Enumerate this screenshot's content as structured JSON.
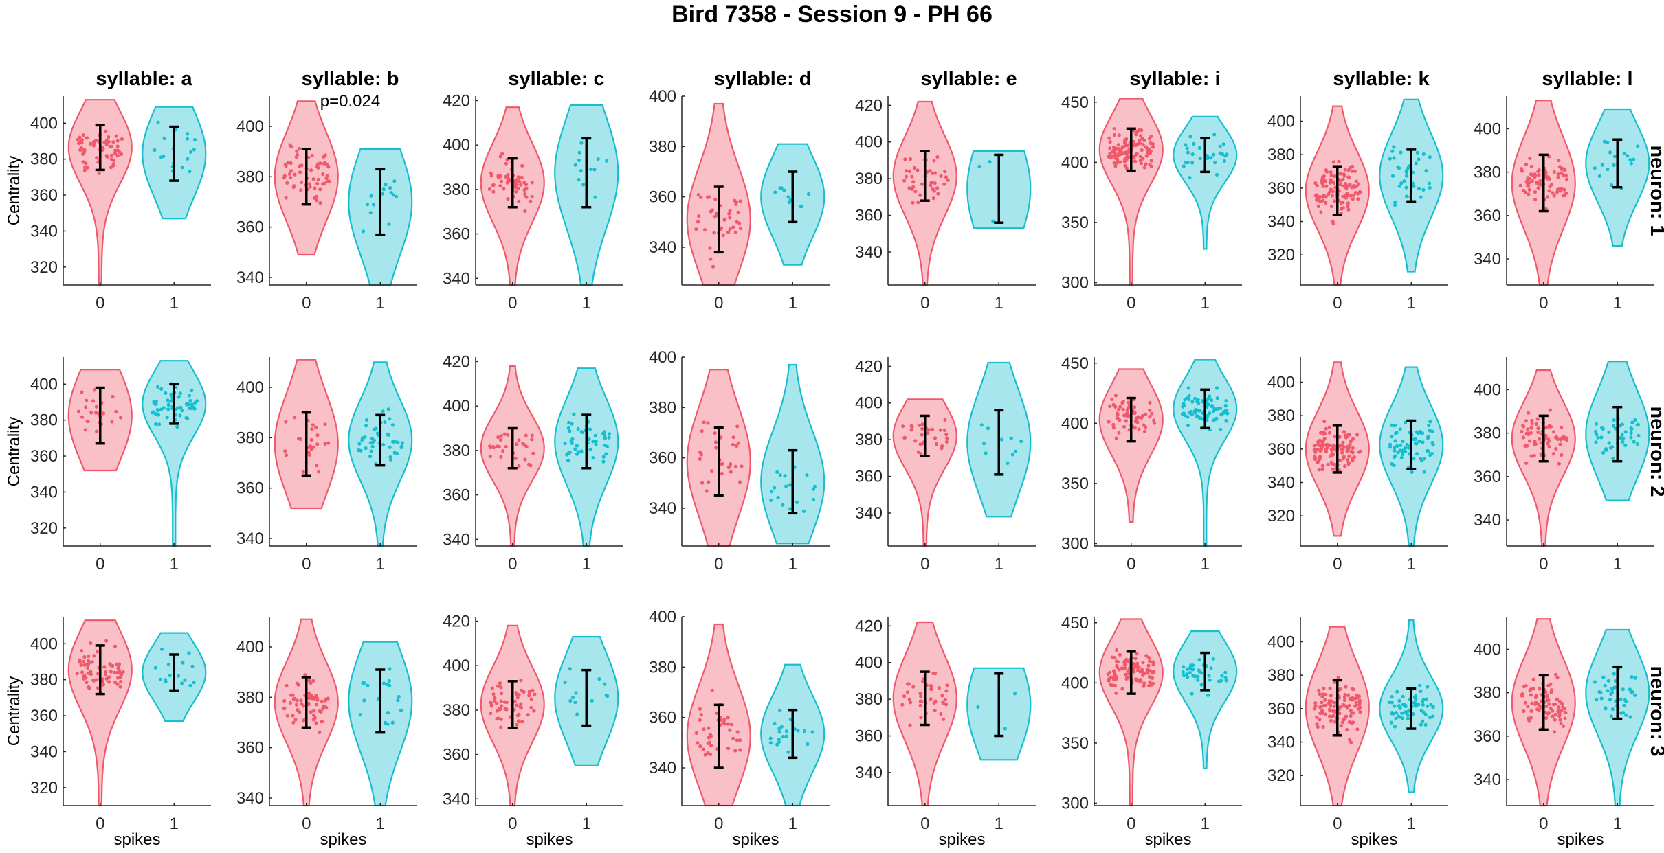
{
  "figure": {
    "title": "Bird 7358 - Session 9 - PH 66",
    "colors": {
      "spike0": "#f0596b",
      "spike1": "#17becf",
      "errorbar": "#000000"
    }
  },
  "chart_data": {
    "type": "violin",
    "title": "Bird 7358 - Session 9 - PH 66",
    "xlabel": "spikes",
    "ylabel": "Centrality",
    "x_categories": [
      "0",
      "1"
    ],
    "columns": [
      "syllable: a",
      "syllable: b",
      "syllable: c",
      "syllable: d",
      "syllable: e",
      "syllable: i",
      "syllable: k",
      "syllable: l"
    ],
    "rows": [
      "neuron: 1",
      "neuron: 2",
      "neuron: 3"
    ],
    "ylims": [
      [
        310,
        415
      ],
      [
        337,
        412
      ],
      [
        337,
        422
      ],
      [
        325,
        400
      ],
      [
        322,
        425
      ],
      [
        298,
        455
      ],
      [
        302,
        415
      ],
      [
        328,
        415
      ]
    ],
    "yticks": [
      [
        320,
        340,
        360,
        380,
        400
      ],
      [
        340,
        360,
        380,
        400
      ],
      [
        340,
        360,
        380,
        400,
        420
      ],
      [
        340,
        360,
        380,
        400
      ],
      [
        340,
        360,
        380,
        400,
        420
      ],
      [
        300,
        350,
        400,
        450
      ],
      [
        320,
        340,
        360,
        380,
        400
      ],
      [
        340,
        360,
        380,
        400
      ]
    ],
    "panels": [
      [
        {
          "groups": [
            {
              "min": 310,
              "max": 413,
              "q1": 374,
              "q3": 399,
              "n": 70
            },
            {
              "min": 347,
              "max": 409,
              "q1": 368,
              "q3": 398,
              "n": 18
            }
          ]
        },
        {
          "annotation": "p=0.024",
          "groups": [
            {
              "min": 349,
              "max": 410,
              "q1": 369,
              "q3": 391,
              "n": 60
            },
            {
              "min": 337,
              "max": 391,
              "q1": 357,
              "q3": 383,
              "n": 14
            }
          ]
        },
        {
          "groups": [
            {
              "min": 337,
              "max": 417,
              "q1": 372,
              "q3": 394,
              "n": 55
            },
            {
              "min": 337,
              "max": 418,
              "q1": 372,
              "q3": 403,
              "n": 12
            }
          ]
        },
        {
          "groups": [
            {
              "min": 325,
              "max": 397,
              "q1": 338,
              "q3": 364,
              "n": 40
            },
            {
              "min": 333,
              "max": 381,
              "q1": 350,
              "q3": 370,
              "n": 10
            }
          ]
        },
        {
          "groups": [
            {
              "min": 322,
              "max": 422,
              "q1": 368,
              "q3": 395,
              "n": 40
            },
            {
              "min": 353,
              "max": 395,
              "q1": 356,
              "q3": 393,
              "n": 3
            }
          ]
        },
        {
          "groups": [
            {
              "min": 298,
              "max": 453,
              "q1": 393,
              "q3": 428,
              "n": 110
            },
            {
              "min": 328,
              "max": 438,
              "q1": 392,
              "q3": 420,
              "n": 28
            }
          ]
        },
        {
          "groups": [
            {
              "min": 302,
              "max": 409,
              "q1": 344,
              "q3": 373,
              "n": 110
            },
            {
              "min": 310,
              "max": 413,
              "q1": 352,
              "q3": 383,
              "n": 38
            }
          ]
        },
        {
          "groups": [
            {
              "min": 328,
              "max": 413,
              "q1": 362,
              "q3": 388,
              "n": 80
            },
            {
              "min": 346,
              "max": 409,
              "q1": 373,
              "q3": 395,
              "n": 18
            }
          ]
        }
      ],
      [
        {
          "groups": [
            {
              "min": 352,
              "max": 408,
              "q1": 367,
              "q3": 398,
              "n": 25
            },
            {
              "min": 310,
              "max": 413,
              "q1": 378,
              "q3": 400,
              "n": 60
            }
          ]
        },
        {
          "groups": [
            {
              "min": 352,
              "max": 411,
              "q1": 365,
              "q3": 390,
              "n": 25
            },
            {
              "min": 337,
              "max": 410,
              "q1": 369,
              "q3": 389,
              "n": 45
            }
          ]
        },
        {
          "groups": [
            {
              "min": 337,
              "max": 418,
              "q1": 372,
              "q3": 390,
              "n": 30
            },
            {
              "min": 337,
              "max": 417,
              "q1": 372,
              "q3": 396,
              "n": 45
            }
          ]
        },
        {
          "groups": [
            {
              "min": 325,
              "max": 395,
              "q1": 345,
              "q3": 372,
              "n": 30
            },
            {
              "min": 326,
              "max": 397,
              "q1": 338,
              "q3": 363,
              "n": 18
            }
          ]
        },
        {
          "groups": [
            {
              "min": 322,
              "max": 402,
              "q1": 371,
              "q3": 393,
              "n": 30
            },
            {
              "min": 338,
              "max": 422,
              "q1": 361,
              "q3": 396,
              "n": 10
            }
          ]
        },
        {
          "groups": [
            {
              "min": 318,
              "max": 445,
              "q1": 385,
              "q3": 421,
              "n": 60
            },
            {
              "min": 298,
              "max": 453,
              "q1": 396,
              "q3": 428,
              "n": 80
            }
          ]
        },
        {
          "groups": [
            {
              "min": 308,
              "max": 412,
              "q1": 346,
              "q3": 374,
              "n": 110
            },
            {
              "min": 302,
              "max": 409,
              "q1": 348,
              "q3": 377,
              "n": 70
            }
          ]
        },
        {
          "groups": [
            {
              "min": 328,
              "max": 409,
              "q1": 367,
              "q3": 388,
              "n": 70
            },
            {
              "min": 349,
              "max": 413,
              "q1": 367,
              "q3": 392,
              "n": 40
            }
          ]
        }
      ],
      [
        {
          "groups": [
            {
              "min": 310,
              "max": 413,
              "q1": 372,
              "q3": 399,
              "n": 70
            },
            {
              "min": 357,
              "max": 406,
              "q1": 374,
              "q3": 394,
              "n": 15
            }
          ]
        },
        {
          "groups": [
            {
              "min": 337,
              "max": 411,
              "q1": 368,
              "q3": 388,
              "n": 60
            },
            {
              "min": 337,
              "max": 402,
              "q1": 366,
              "q3": 391,
              "n": 18
            }
          ]
        },
        {
          "groups": [
            {
              "min": 337,
              "max": 418,
              "q1": 372,
              "q3": 393,
              "n": 55
            },
            {
              "min": 355,
              "max": 413,
              "q1": 373,
              "q3": 398,
              "n": 12
            }
          ]
        },
        {
          "groups": [
            {
              "min": 325,
              "max": 397,
              "q1": 340,
              "q3": 365,
              "n": 40
            },
            {
              "min": 325,
              "max": 381,
              "q1": 344,
              "q3": 363,
              "n": 20
            }
          ]
        },
        {
          "groups": [
            {
              "min": 322,
              "max": 422,
              "q1": 366,
              "q3": 395,
              "n": 40
            },
            {
              "min": 347,
              "max": 397,
              "q1": 360,
              "q3": 394,
              "n": 3
            }
          ]
        },
        {
          "groups": [
            {
              "min": 298,
              "max": 453,
              "q1": 391,
              "q3": 426,
              "n": 110
            },
            {
              "min": 329,
              "max": 443,
              "q1": 394,
              "q3": 425,
              "n": 35
            }
          ]
        },
        {
          "groups": [
            {
              "min": 302,
              "max": 409,
              "q1": 344,
              "q3": 377,
              "n": 110
            },
            {
              "min": 310,
              "max": 413,
              "q1": 348,
              "q3": 372,
              "n": 60
            }
          ]
        },
        {
          "groups": [
            {
              "min": 328,
              "max": 414,
              "q1": 363,
              "q3": 388,
              "n": 80
            },
            {
              "min": 328,
              "max": 409,
              "q1": 368,
              "q3": 392,
              "n": 40
            }
          ]
        }
      ]
    ]
  }
}
